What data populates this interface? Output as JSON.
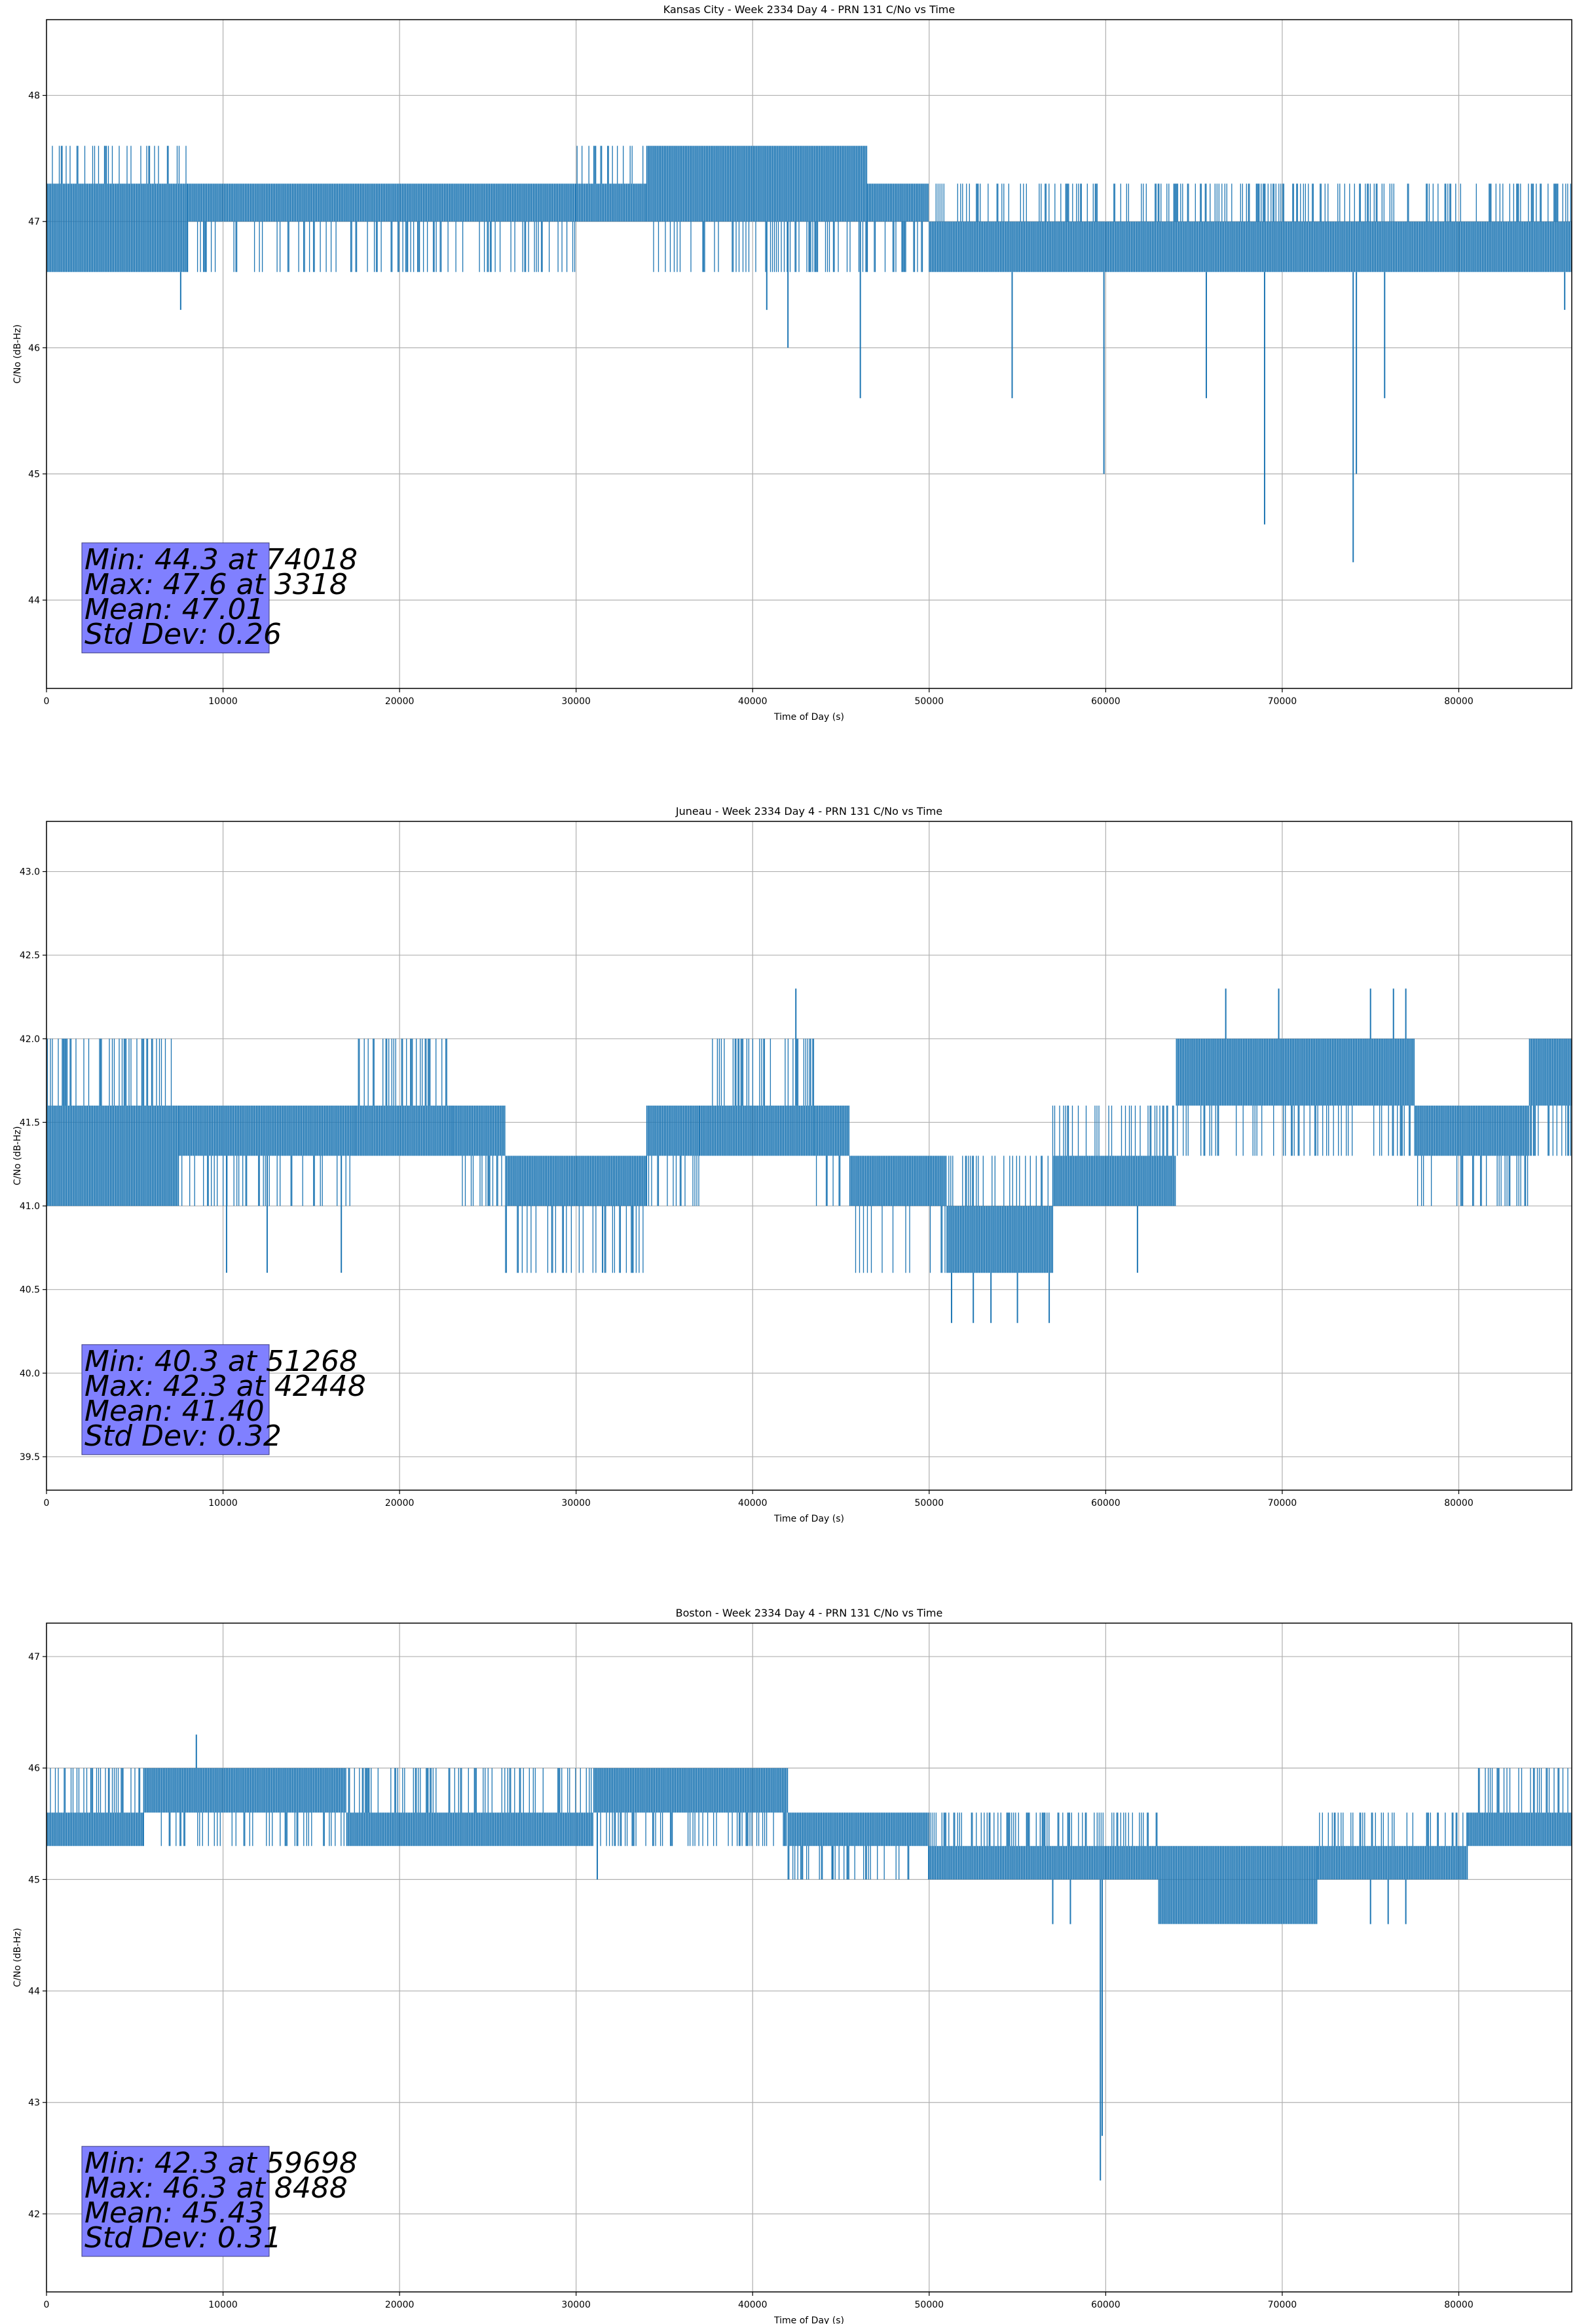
{
  "chart_data": [
    {
      "type": "line",
      "title": "Kansas City - Week 2334 Day 4 - PRN 131 C/No vs Time",
      "xlabel": "Time of Day (s)",
      "ylabel": "C/No (dB-Hz)",
      "xlim": [
        0,
        86400
      ],
      "ylim": [
        43.3,
        48.6
      ],
      "xticks": [
        0,
        10000,
        20000,
        30000,
        40000,
        50000,
        60000,
        70000,
        80000
      ],
      "xtick_labels": [
        "0",
        "10000",
        "20000",
        "30000",
        "40000",
        "50000",
        "60000",
        "70000",
        "80000"
      ],
      "yticks": [
        44,
        45,
        46,
        47,
        48
      ],
      "ytick_labels": [
        "44",
        "45",
        "46",
        "47",
        "48"
      ],
      "grid": true,
      "color": "#1f77b4",
      "levels": [
        46.6,
        47.0,
        47.3,
        47.6
      ],
      "segments": [
        {
          "x0": 0,
          "x1": 8000,
          "lo": 46.6,
          "hi": 47.3,
          "burst_hi": 47.6
        },
        {
          "x0": 8000,
          "x1": 30000,
          "lo": 47.0,
          "hi": 47.3,
          "burst_lo": 46.6
        },
        {
          "x0": 30000,
          "x1": 34000,
          "lo": 47.0,
          "hi": 47.3,
          "burst_hi": 47.6
        },
        {
          "x0": 34000,
          "x1": 46500,
          "lo": 47.0,
          "hi": 47.6,
          "burst_lo": 46.6
        },
        {
          "x0": 46500,
          "x1": 50000,
          "lo": 47.0,
          "hi": 47.3,
          "burst_lo": 46.6
        },
        {
          "x0": 50000,
          "x1": 86400,
          "lo": 46.6,
          "hi": 47.0,
          "burst_hi": 47.3
        }
      ],
      "spikes": [
        [
          7600,
          46.3
        ],
        [
          40800,
          46.3
        ],
        [
          42000,
          46.0
        ],
        [
          46100,
          45.6
        ],
        [
          54700,
          45.6
        ],
        [
          59900,
          45.0
        ],
        [
          65700,
          45.6
        ],
        [
          69000,
          44.6
        ],
        [
          74018,
          44.3
        ],
        [
          74200,
          45.0
        ],
        [
          75800,
          45.6
        ],
        [
          86000,
          46.3
        ]
      ],
      "stats_box": {
        "lines": [
          "Min: 44.3 at 74018",
          "Max: 47.6 at 3318",
          "Mean: 47.01",
          "Std Dev: 0.26"
        ],
        "facecolor": "#8080ff"
      }
    },
    {
      "type": "line",
      "title": "Juneau - Week 2334 Day 4 - PRN 131 C/No vs Time",
      "xlabel": "Time of Day (s)",
      "ylabel": "C/No (dB-Hz)",
      "xlim": [
        0,
        86400
      ],
      "ylim": [
        39.3,
        43.3
      ],
      "xticks": [
        0,
        10000,
        20000,
        30000,
        40000,
        50000,
        60000,
        70000,
        80000
      ],
      "xtick_labels": [
        "0",
        "10000",
        "20000",
        "30000",
        "40000",
        "50000",
        "60000",
        "70000",
        "80000"
      ],
      "yticks": [
        39.5,
        40.0,
        40.5,
        41.0,
        41.5,
        42.0,
        42.5,
        43.0
      ],
      "ytick_labels": [
        "39.5",
        "40.0",
        "40.5",
        "41.0",
        "41.5",
        "42.0",
        "42.5",
        "43.0"
      ],
      "grid": true,
      "color": "#1f77b4",
      "levels": [
        40.6,
        41.0,
        41.3,
        41.6,
        42.0
      ],
      "segments": [
        {
          "x0": 0,
          "x1": 7500,
          "lo": 41.0,
          "hi": 41.6,
          "burst_hi": 42.0
        },
        {
          "x0": 7500,
          "x1": 17500,
          "lo": 41.3,
          "hi": 41.6,
          "burst_lo": 41.0
        },
        {
          "x0": 17500,
          "x1": 23000,
          "lo": 41.3,
          "hi": 41.6,
          "burst_hi": 42.0
        },
        {
          "x0": 23000,
          "x1": 26000,
          "lo": 41.3,
          "hi": 41.6,
          "burst_lo": 41.0
        },
        {
          "x0": 26000,
          "x1": 34000,
          "lo": 41.0,
          "hi": 41.3,
          "burst_lo": 40.6
        },
        {
          "x0": 34000,
          "x1": 37000,
          "lo": 41.3,
          "hi": 41.6,
          "burst_lo": 41.0
        },
        {
          "x0": 37000,
          "x1": 43500,
          "lo": 41.3,
          "hi": 41.6,
          "burst_hi": 42.0
        },
        {
          "x0": 43500,
          "x1": 45500,
          "lo": 41.3,
          "hi": 41.6,
          "burst_lo": 41.0
        },
        {
          "x0": 45500,
          "x1": 51000,
          "lo": 41.0,
          "hi": 41.3,
          "burst_lo": 40.6
        },
        {
          "x0": 51000,
          "x1": 57000,
          "lo": 40.6,
          "hi": 41.0,
          "burst_hi": 41.3
        },
        {
          "x0": 57000,
          "x1": 64000,
          "lo": 41.0,
          "hi": 41.3,
          "burst_hi": 41.6
        },
        {
          "x0": 64000,
          "x1": 77500,
          "lo": 41.6,
          "hi": 42.0,
          "burst_lo": 41.3
        },
        {
          "x0": 77500,
          "x1": 84000,
          "lo": 41.3,
          "hi": 41.6,
          "burst_lo": 41.0
        },
        {
          "x0": 84000,
          "x1": 86400,
          "lo": 41.6,
          "hi": 42.0,
          "burst_lo": 41.3
        }
      ],
      "spikes": [
        [
          42448,
          42.3
        ],
        [
          51268,
          40.3
        ],
        [
          52500,
          40.3
        ],
        [
          53500,
          40.3
        ],
        [
          55000,
          40.3
        ],
        [
          56800,
          40.3
        ],
        [
          10200,
          40.6
        ],
        [
          12500,
          40.6
        ],
        [
          16700,
          40.6
        ],
        [
          31500,
          40.6
        ],
        [
          66800,
          42.3
        ],
        [
          69800,
          42.3
        ],
        [
          75000,
          42.3
        ],
        [
          76300,
          42.3
        ],
        [
          77000,
          42.3
        ],
        [
          61800,
          40.6
        ]
      ],
      "stats_box": {
        "lines": [
          "Min: 40.3 at 51268",
          "Max: 42.3 at 42448",
          "Mean: 41.40",
          "Std Dev: 0.32"
        ],
        "facecolor": "#8080ff"
      }
    },
    {
      "type": "line",
      "title": "Boston - Week 2334 Day 4 - PRN 131 C/No vs Time",
      "xlabel": "Time of Day (s)",
      "ylabel": "C/No (dB-Hz)",
      "xlim": [
        0,
        86400
      ],
      "ylim": [
        41.3,
        47.3
      ],
      "xticks": [
        0,
        10000,
        20000,
        30000,
        40000,
        50000,
        60000,
        70000,
        80000
      ],
      "xtick_labels": [
        "0",
        "10000",
        "20000",
        "30000",
        "40000",
        "50000",
        "60000",
        "70000",
        "80000"
      ],
      "yticks": [
        42,
        43,
        44,
        45,
        46,
        47
      ],
      "ytick_labels": [
        "42",
        "43",
        "44",
        "45",
        "46",
        "47"
      ],
      "grid": true,
      "color": "#1f77b4",
      "levels": [
        44.6,
        45.0,
        45.3,
        45.6,
        46.0
      ],
      "segments": [
        {
          "x0": 0,
          "x1": 5500,
          "lo": 45.3,
          "hi": 45.6,
          "burst_hi": 46.0
        },
        {
          "x0": 5500,
          "x1": 17000,
          "lo": 45.6,
          "hi": 46.0,
          "burst_lo": 45.3
        },
        {
          "x0": 17000,
          "x1": 31000,
          "lo": 45.3,
          "hi": 45.6,
          "burst_hi": 46.0
        },
        {
          "x0": 31000,
          "x1": 42000,
          "lo": 45.6,
          "hi": 46.0,
          "burst_lo": 45.3
        },
        {
          "x0": 42000,
          "x1": 50000,
          "lo": 45.3,
          "hi": 45.6,
          "burst_lo": 45.0
        },
        {
          "x0": 50000,
          "x1": 63000,
          "lo": 45.0,
          "hi": 45.3,
          "burst_hi": 45.6
        },
        {
          "x0": 63000,
          "x1": 72000,
          "lo": 44.6,
          "hi": 45.3,
          "burst_lo": 44.6
        },
        {
          "x0": 72000,
          "x1": 80500,
          "lo": 45.0,
          "hi": 45.3,
          "burst_hi": 45.6
        },
        {
          "x0": 80500,
          "x1": 86400,
          "lo": 45.3,
          "hi": 45.6,
          "burst_hi": 46.0
        }
      ],
      "spikes": [
        [
          8488,
          46.3
        ],
        [
          31200,
          45.0
        ],
        [
          44500,
          45.0
        ],
        [
          59698,
          42.3
        ],
        [
          59800,
          42.7
        ],
        [
          57000,
          44.6
        ],
        [
          58000,
          44.6
        ],
        [
          75000,
          44.6
        ],
        [
          76000,
          44.6
        ],
        [
          77000,
          44.6
        ]
      ],
      "stats_box": {
        "lines": [
          "Min: 42.3 at 59698",
          "Max: 46.3 at 8488",
          "Mean: 45.43",
          "Std Dev: 0.31"
        ],
        "facecolor": "#8080ff"
      }
    }
  ]
}
